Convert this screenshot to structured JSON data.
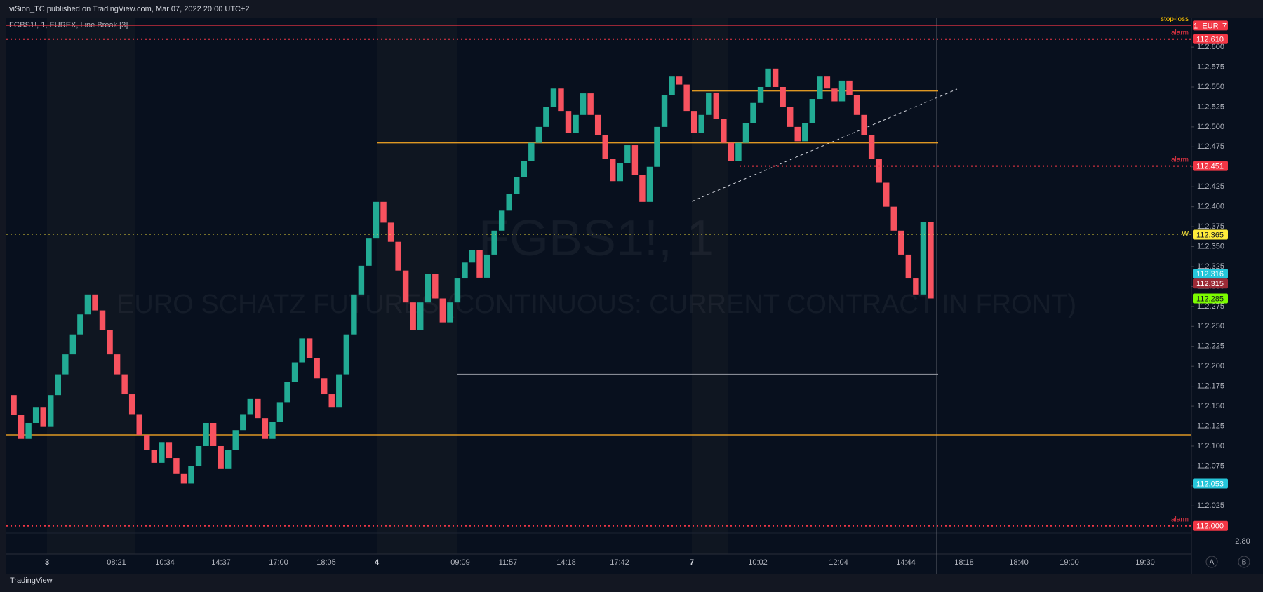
{
  "header": {
    "publisher": "viSion_TC published on TradingView.com, Mar 07, 2022 20:00 UTC+2",
    "symbol": "FGBS1!, 1, EUREX, Line Break [3]"
  },
  "watermark": {
    "symbol": "FGBS1!, 1",
    "description": "EURO SCHATZ FUTURES (CONTINUOUS: CURRENT CONTRACT IN FRONT)"
  },
  "chart_data": {
    "type": "line_break",
    "up_color": "#22ab94",
    "down_color": "#f7525f",
    "values": [
      112.164,
      112.139,
      112.109,
      112.129,
      112.149,
      112.124,
      112.164,
      112.19,
      112.215,
      112.24,
      112.265,
      112.29,
      112.27,
      112.245,
      112.215,
      112.19,
      112.165,
      112.14,
      112.114,
      112.095,
      112.079,
      112.105,
      112.085,
      112.065,
      112.053,
      112.075,
      112.1,
      112.129,
      112.1,
      112.072,
      112.095,
      112.12,
      112.14,
      112.159,
      112.135,
      112.109,
      112.13,
      112.155,
      112.18,
      112.205,
      112.235,
      112.21,
      112.185,
      112.165,
      112.149,
      112.19,
      112.24,
      112.29,
      112.326,
      112.36,
      112.406,
      112.38,
      112.356,
      112.32,
      112.28,
      112.245,
      112.28,
      112.316,
      112.285,
      112.255,
      112.28,
      112.31,
      112.33,
      112.346,
      112.311,
      112.34,
      112.37,
      112.395,
      112.416,
      112.437,
      112.457,
      112.48,
      112.5,
      112.525,
      112.548,
      112.52,
      112.492,
      112.515,
      112.542,
      112.515,
      112.49,
      112.46,
      112.432,
      112.455,
      112.477,
      112.44,
      112.406,
      112.45,
      112.5,
      112.54,
      112.563,
      112.553,
      112.52,
      112.492,
      112.515,
      112.543,
      112.51,
      112.48,
      112.457,
      112.48,
      112.505,
      112.53,
      112.55,
      112.573,
      112.55,
      112.525,
      112.5,
      112.482,
      112.505,
      112.535,
      112.563,
      112.548,
      112.532,
      112.558,
      112.54,
      112.515,
      112.49,
      112.46,
      112.43,
      112.4,
      112.37,
      112.34,
      112.31,
      112.29,
      112.381,
      112.285
    ],
    "ylim": [
      111.991,
      112.637
    ],
    "yticks": [
      {
        "value": 112.025,
        "label": "112.025"
      },
      {
        "value": 112.05,
        "label": "112.050"
      },
      {
        "value": 112.075,
        "label": "112.075"
      },
      {
        "value": 112.1,
        "label": "112.100"
      },
      {
        "value": 112.125,
        "label": "112.125"
      },
      {
        "value": 112.15,
        "label": "112.150"
      },
      {
        "value": 112.175,
        "label": "112.175"
      },
      {
        "value": 112.2,
        "label": "112.200"
      },
      {
        "value": 112.225,
        "label": "112.225"
      },
      {
        "value": 112.25,
        "label": "112.250"
      },
      {
        "value": 112.275,
        "label": "112.275"
      },
      {
        "value": 112.3,
        "label": "112.300"
      },
      {
        "value": 112.325,
        "label": "112.325"
      },
      {
        "value": 112.35,
        "label": "112.350"
      },
      {
        "value": 112.375,
        "label": "112.375"
      },
      {
        "value": 112.4,
        "label": "112.400"
      },
      {
        "value": 112.425,
        "label": "112.425"
      },
      {
        "value": 112.45,
        "label": "112.450"
      },
      {
        "value": 112.475,
        "label": "112.475"
      },
      {
        "value": 112.5,
        "label": "112.500"
      },
      {
        "value": 112.525,
        "label": "112.525"
      },
      {
        "value": 112.55,
        "label": "112.550"
      },
      {
        "value": 112.575,
        "label": "112.575"
      },
      {
        "value": 112.6,
        "label": "112.600"
      }
    ],
    "time_labels": [
      "3",
      "08:21",
      "10:34",
      "14:37",
      "17:00",
      "18:05",
      "4",
      "09:09",
      "11:57",
      "14:18",
      "17:42",
      "7",
      "10:02",
      "12:04",
      "14:44",
      "18:18",
      "18:40",
      "19:00",
      "19:30"
    ],
    "horizontal_lines": [
      {
        "value": 112.114,
        "color": "#f5a623"
      },
      {
        "value": 112.48,
        "color": "#f5a623"
      },
      {
        "value": 112.545,
        "color": "#f5a623"
      },
      {
        "value": 112.19,
        "color": "#9598a1"
      }
    ],
    "price_labels": [
      {
        "value": 112.61,
        "label": "112.610",
        "color": "#f23645",
        "tag": "alarm"
      },
      {
        "value": 112.451,
        "label": "112.451",
        "color": "#f23645",
        "tag": "alarm"
      },
      {
        "value": 112.365,
        "label": "112.365",
        "color": "#ffeb3b",
        "tag": "W"
      },
      {
        "value": 112.316,
        "label": "112.316",
        "color": "#26c6da"
      },
      {
        "value": 112.315,
        "label": "112.315",
        "color": "#9c2a36"
      },
      {
        "value": 112.285,
        "label": "112.285",
        "color": "#7cfc00"
      },
      {
        "value": 112.053,
        "label": "112.053",
        "color": "#26c6da"
      },
      {
        "value": 112.0,
        "label": "112.000",
        "color": "#f23645",
        "tag": "alarm"
      }
    ],
    "stop_loss": {
      "value": 112.627,
      "tag": "stop-loss",
      "texts": [
        "1",
        "EUR",
        "7"
      ],
      "color": "#f23645"
    },
    "volume_axis_label": "2.80"
  },
  "footer": "TradingView",
  "buttons": [
    "A",
    "B"
  ]
}
